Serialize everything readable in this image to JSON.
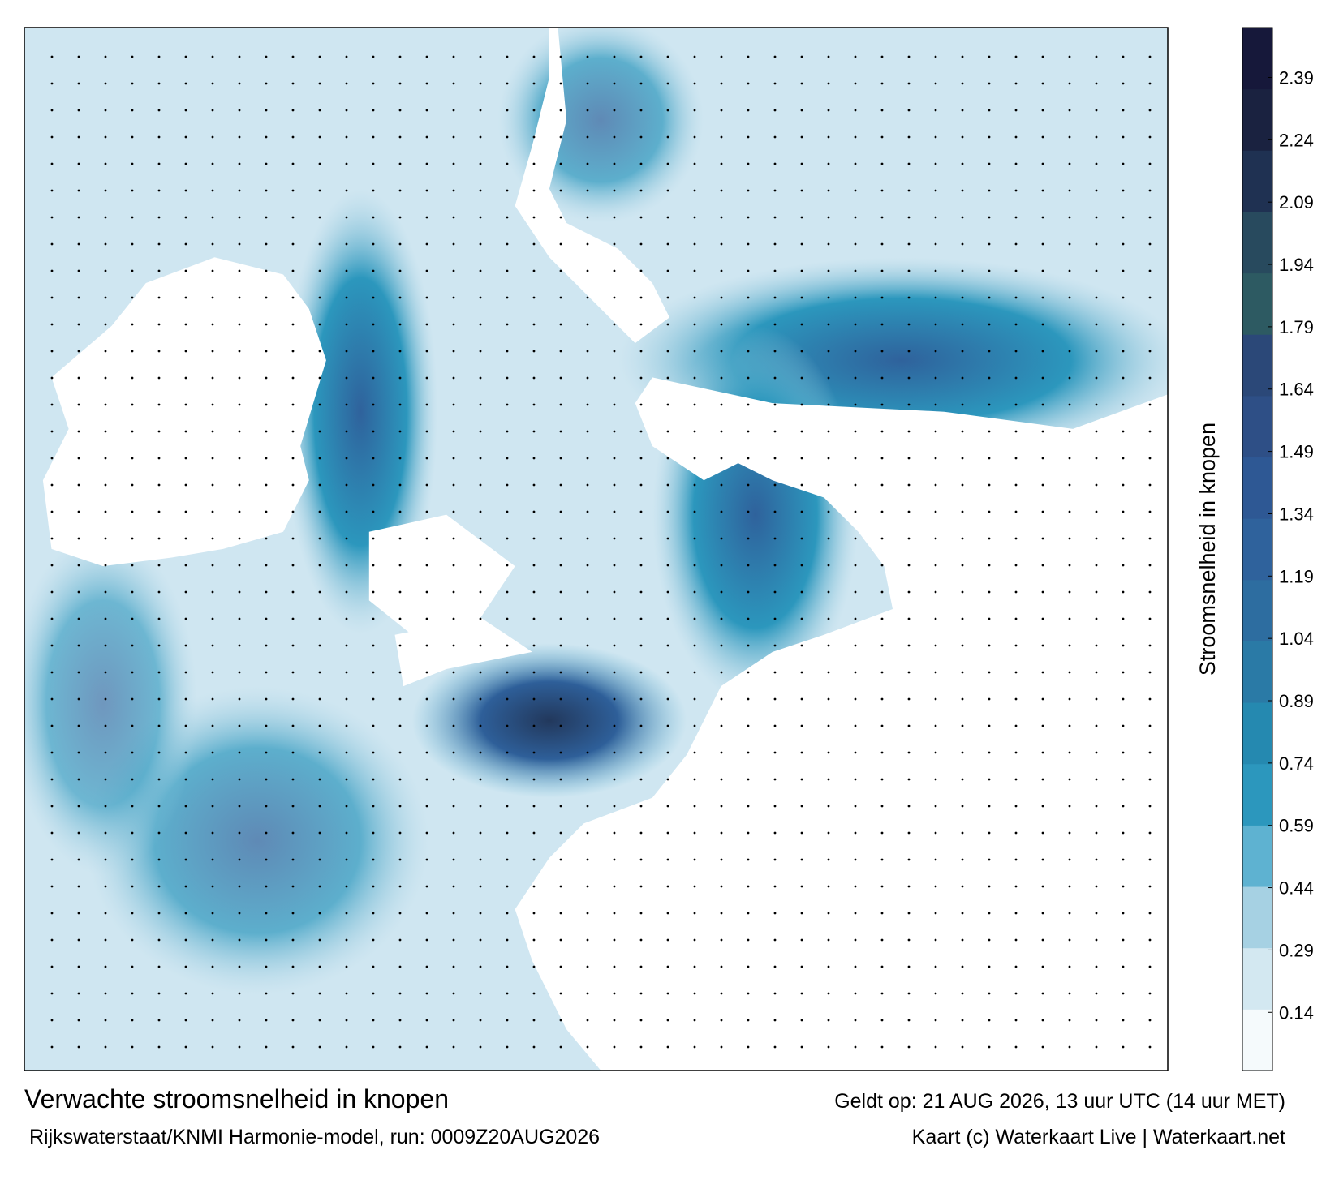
{
  "map": {
    "title": "Verwachte stroomsnelheid in knopen",
    "subtitle": "Rijkswaterstaat/KNMI Harmonie-model, run: 0009Z20AUG2026",
    "valid_time": "Geldt op: 21 AUG 2026, 13 uur UTC (14 uur MET)",
    "credit": "Kaart (c) Waterkaart Live | Waterkaart.net",
    "colorbar": {
      "label": "Stroomsnelheid in knopen",
      "clim": [
        0,
        2.51
      ],
      "ticks": [
        0.14,
        0.29,
        0.44,
        0.59,
        0.74,
        0.89,
        1.04,
        1.19,
        1.34,
        1.49,
        1.64,
        1.79,
        1.94,
        2.09,
        2.24,
        2.39
      ],
      "colors": [
        "#f5fafc",
        "#d3e8f1",
        "#a6d1e3",
        "#5eb2d1",
        "#2c97bd",
        "#2589b0",
        "#2a7aa6",
        "#2d6da0",
        "#2f629c",
        "#2e5894",
        "#2e4f86",
        "#2b4878",
        "#2d5a62",
        "#284a5e",
        "#1f3152",
        "#1a2240",
        "#16183a"
      ]
    }
  }
}
